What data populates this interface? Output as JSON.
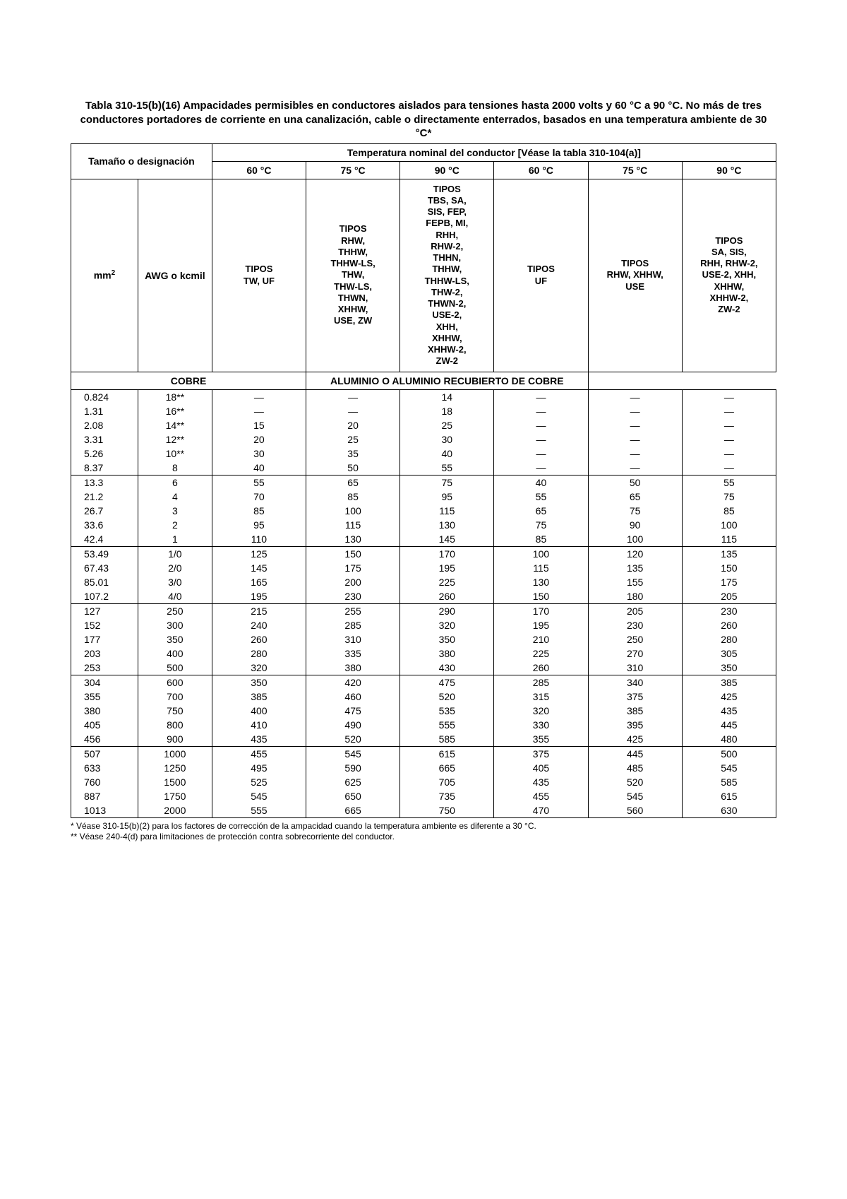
{
  "title": "Tabla 310-15(b)(16) Ampacidades permisibles en conductores aislados para tensiones hasta 2000 volts y 60 °C a 90 °C. No más de tres conductores portadores de corriente en una canalización, cable o directamente enterrados, basados en una temperatura ambiente de 30 °C*",
  "header": {
    "size_label": "Tamaño o designación",
    "temp_header": "Temperatura nominal del conductor [Véase la tabla 310-104(a)]",
    "mm2_html": "mm<sup>2</sup>",
    "awg": "AWG o kcmil",
    "t60": "60 °C",
    "t75": "75 °C",
    "t90": "90 °C",
    "types60c": "TIPOS\nTW, UF",
    "types75c": "TIPOS\nRHW,\nTHHW,\nTHHW-LS,\nTHW,\nTHW-LS,\nTHWN,\nXHHW,\nUSE, ZW",
    "types90c": "TIPOS\nTBS, SA,\nSIS, FEP,\nFEPB, MI,\nRHH,\nRHW-2,\nTHHN,\nTHHW,\nTHHW-LS,\nTHW-2,\nTHWN-2,\nUSE-2,\nXHH,\nXHHW,\nXHHW-2,\nZW-2",
    "types60a": "TIPOS\nUF",
    "types75a": "TIPOS\nRHW, XHHW,\nUSE",
    "types90a": "TIPOS\nSA, SIS,\nRHH, RHW-2,\nUSE-2, XHH,\nXHHW,\nXHHW-2,\nZW-2",
    "copper": "COBRE",
    "aluminum": "ALUMINIO O ALUMINIO RECUBIERTO DE COBRE"
  },
  "sections": [
    {
      "rows": [
        [
          "0.824",
          "18**",
          "—",
          "—",
          "14",
          "—",
          "—",
          "—"
        ],
        [
          "1.31",
          "16**",
          "—",
          "—",
          "18",
          "—",
          "—",
          "—"
        ],
        [
          "2.08",
          "14**",
          "15",
          "20",
          "25",
          "—",
          "—",
          "—"
        ],
        [
          "3.31",
          "12**",
          "20",
          "25",
          "30",
          "—",
          "—",
          "—"
        ],
        [
          "5.26",
          "10**",
          "30",
          "35",
          "40",
          "—",
          "—",
          "—"
        ],
        [
          "8.37",
          "8",
          "40",
          "50",
          "55",
          "—",
          "—",
          "—"
        ]
      ]
    },
    {
      "rows": [
        [
          "13.3",
          "6",
          "55",
          "65",
          "75",
          "40",
          "50",
          "55"
        ],
        [
          "21.2",
          "4",
          "70",
          "85",
          "95",
          "55",
          "65",
          "75"
        ],
        [
          "26.7",
          "3",
          "85",
          "100",
          "115",
          "65",
          "75",
          "85"
        ],
        [
          "33.6",
          "2",
          "95",
          "115",
          "130",
          "75",
          "90",
          "100"
        ],
        [
          "42.4",
          "1",
          "110",
          "130",
          "145",
          "85",
          "100",
          "115"
        ]
      ]
    },
    {
      "rows": [
        [
          "53.49",
          "1/0",
          "125",
          "150",
          "170",
          "100",
          "120",
          "135"
        ],
        [
          "67.43",
          "2/0",
          "145",
          "175",
          "195",
          "115",
          "135",
          "150"
        ],
        [
          "85.01",
          "3/0",
          "165",
          "200",
          "225",
          "130",
          "155",
          "175"
        ],
        [
          "107.2",
          "4/0",
          "195",
          "230",
          "260",
          "150",
          "180",
          "205"
        ]
      ]
    },
    {
      "rows": [
        [
          "127",
          "250",
          "215",
          "255",
          "290",
          "170",
          "205",
          "230"
        ],
        [
          "152",
          "300",
          "240",
          "285",
          "320",
          "195",
          "230",
          "260"
        ],
        [
          "177",
          "350",
          "260",
          "310",
          "350",
          "210",
          "250",
          "280"
        ],
        [
          "203",
          "400",
          "280",
          "335",
          "380",
          "225",
          "270",
          "305"
        ],
        [
          "253",
          "500",
          "320",
          "380",
          "430",
          "260",
          "310",
          "350"
        ]
      ]
    },
    {
      "rows": [
        [
          "304",
          "600",
          "350",
          "420",
          "475",
          "285",
          "340",
          "385"
        ],
        [
          "355",
          "700",
          "385",
          "460",
          "520",
          "315",
          "375",
          "425"
        ],
        [
          "380",
          "750",
          "400",
          "475",
          "535",
          "320",
          "385",
          "435"
        ],
        [
          "405",
          "800",
          "410",
          "490",
          "555",
          "330",
          "395",
          "445"
        ],
        [
          "456",
          "900",
          "435",
          "520",
          "585",
          "355",
          "425",
          "480"
        ]
      ]
    },
    {
      "rows": [
        [
          "507",
          "1000",
          "455",
          "545",
          "615",
          "375",
          "445",
          "500"
        ],
        [
          "633",
          "1250",
          "495",
          "590",
          "665",
          "405",
          "485",
          "545"
        ],
        [
          "760",
          "1500",
          "525",
          "625",
          "705",
          "435",
          "520",
          "585"
        ],
        [
          "887",
          "1750",
          "545",
          "650",
          "735",
          "455",
          "545",
          "615"
        ],
        [
          "1013",
          "2000",
          "555",
          "665",
          "750",
          "470",
          "560",
          "630"
        ]
      ]
    }
  ],
  "footnotes": [
    "* Véase 310-15(b)(2) para los factores de corrección de la ampacidad cuando la temperatura ambiente es diferente a 30 °C.",
    "** Véase 240-4(d) para limitaciones de protección contra sobrecorriente del conductor."
  ]
}
